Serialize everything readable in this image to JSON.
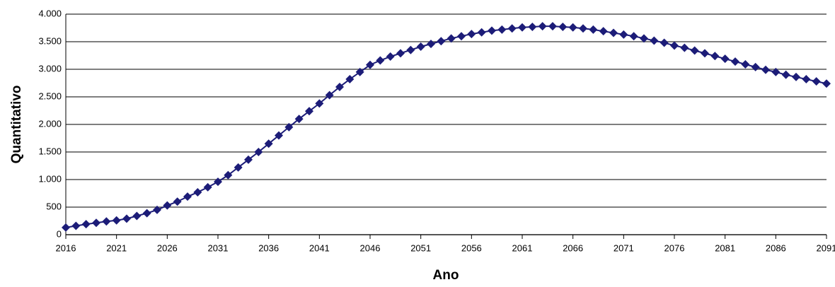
{
  "chart_data": {
    "type": "line",
    "xlabel": "Ano",
    "ylabel": "Quantitativo",
    "x": [
      2016,
      2017,
      2018,
      2019,
      2020,
      2021,
      2022,
      2023,
      2024,
      2025,
      2026,
      2027,
      2028,
      2029,
      2030,
      2031,
      2032,
      2033,
      2034,
      2035,
      2036,
      2037,
      2038,
      2039,
      2040,
      2041,
      2042,
      2043,
      2044,
      2045,
      2046,
      2047,
      2048,
      2049,
      2050,
      2051,
      2052,
      2053,
      2054,
      2055,
      2056,
      2057,
      2058,
      2059,
      2060,
      2061,
      2062,
      2063,
      2064,
      2065,
      2066,
      2067,
      2068,
      2069,
      2070,
      2071,
      2072,
      2073,
      2074,
      2075,
      2076,
      2077,
      2078,
      2079,
      2080,
      2081,
      2082,
      2083,
      2084,
      2085,
      2086,
      2087,
      2088,
      2089,
      2090,
      2091
    ],
    "series": [
      {
        "color": "#1c1c78",
        "values": [
          130,
          160,
          190,
          215,
          240,
          260,
          290,
          340,
          390,
          450,
          530,
          600,
          690,
          770,
          860,
          960,
          1080,
          1220,
          1360,
          1500,
          1650,
          1800,
          1950,
          2100,
          2240,
          2380,
          2530,
          2680,
          2820,
          2950,
          3080,
          3160,
          3230,
          3290,
          3350,
          3410,
          3460,
          3510,
          3560,
          3600,
          3640,
          3670,
          3700,
          3720,
          3740,
          3760,
          3770,
          3780,
          3780,
          3770,
          3760,
          3740,
          3720,
          3690,
          3660,
          3630,
          3600,
          3560,
          3520,
          3480,
          3430,
          3390,
          3340,
          3290,
          3240,
          3190,
          3140,
          3090,
          3040,
          2990,
          2950,
          2900,
          2860,
          2820,
          2780,
          2740
        ]
      }
    ],
    "xlim": [
      2016,
      2091
    ],
    "xticks": [
      2016,
      2021,
      2026,
      2031,
      2036,
      2041,
      2046,
      2051,
      2056,
      2061,
      2066,
      2071,
      2076,
      2081,
      2086,
      2091
    ],
    "ylim": [
      0,
      4000
    ],
    "yticks": [
      0,
      500,
      {
        "value": 1000,
        "label": "1.000"
      },
      {
        "value": 1500,
        "label": "1.500"
      },
      {
        "value": 2000,
        "label": "2.000"
      },
      {
        "value": 2500,
        "label": "2.500"
      },
      {
        "value": 3000,
        "label": "3.000"
      },
      {
        "value": 3500,
        "label": "3.500"
      },
      {
        "value": 4000,
        "label": "4.000"
      }
    ],
    "grid": true
  }
}
